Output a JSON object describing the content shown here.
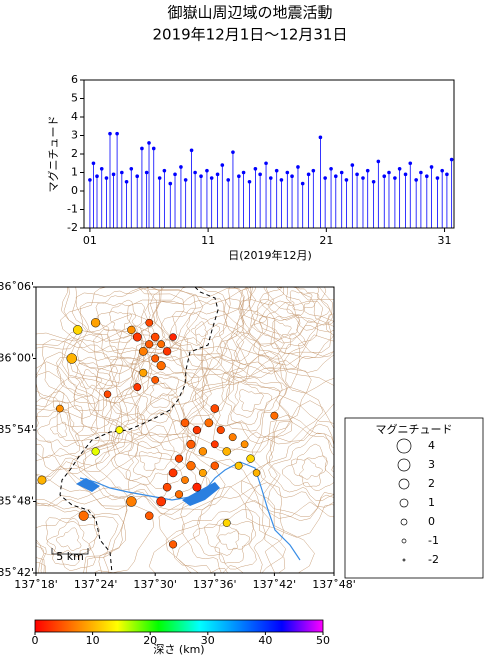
{
  "chart_data": [
    {
      "type": "stem",
      "title": "御嶽山周辺域の地震活動",
      "subtitle": "2019年12月1日～12月31日",
      "ylabel": "マグニチュード",
      "xlabel": "日(2019年12月)",
      "color": "#0000ff",
      "xlim": [
        0.5,
        31.8
      ],
      "ylim": [
        -2,
        6
      ],
      "yticks": [
        -2,
        -1,
        0,
        1,
        2,
        3,
        4,
        5,
        6
      ],
      "xticks": [
        {
          "value": 1,
          "label": "01"
        },
        11,
        21,
        31
      ],
      "x": [
        1.0,
        1.3,
        1.6,
        2.0,
        2.4,
        2.7,
        3.0,
        3.3,
        3.7,
        4.1,
        4.5,
        5.0,
        5.4,
        5.8,
        6.0,
        6.4,
        6.9,
        7.3,
        7.8,
        8.2,
        8.7,
        9.1,
        9.6,
        9.9,
        10.4,
        10.9,
        11.3,
        11.8,
        12.2,
        12.7,
        13.1,
        13.6,
        14.0,
        14.5,
        15.0,
        15.4,
        15.9,
        16.3,
        16.8,
        17.2,
        17.7,
        18.1,
        18.6,
        19.0,
        19.5,
        19.9,
        20.5,
        20.9,
        21.4,
        21.8,
        22.3,
        22.7,
        23.2,
        23.6,
        24.1,
        24.5,
        25.0,
        25.4,
        25.9,
        26.3,
        26.8,
        27.2,
        27.7,
        28.1,
        28.6,
        29.0,
        29.5,
        29.9,
        30.4,
        30.8,
        31.2,
        31.6
      ],
      "values": [
        0.6,
        1.5,
        0.8,
        1.2,
        0.7,
        3.1,
        0.9,
        3.1,
        1.0,
        0.5,
        1.2,
        0.8,
        2.3,
        1.0,
        2.6,
        2.3,
        0.7,
        1.1,
        0.4,
        0.9,
        1.3,
        0.6,
        2.2,
        1.0,
        0.8,
        1.1,
        0.7,
        0.9,
        1.4,
        0.6,
        2.1,
        0.8,
        1.0,
        0.5,
        1.2,
        0.9,
        1.5,
        0.7,
        1.1,
        0.6,
        1.0,
        0.8,
        1.3,
        0.4,
        0.9,
        1.1,
        2.9,
        0.7,
        1.2,
        0.8,
        1.0,
        0.6,
        1.4,
        0.9,
        0.7,
        1.1,
        0.5,
        1.6,
        0.8,
        1.0,
        0.7,
        1.2,
        0.9,
        1.5,
        0.6,
        1.0,
        0.8,
        1.3,
        0.7,
        1.1,
        0.9,
        1.7
      ]
    },
    {
      "type": "map-scatter",
      "xlim": [
        137.3,
        137.8
      ],
      "ylim": [
        35.7,
        36.1
      ],
      "xticks": [
        {
          "value": 137.3,
          "label": "137˚18'"
        },
        {
          "value": 137.4,
          "label": "137˚24'"
        },
        {
          "value": 137.5,
          "label": "137˚30'"
        },
        {
          "value": 137.6,
          "label": "137˚36'"
        },
        {
          "value": 137.7,
          "label": "137˚42'"
        },
        {
          "value": 137.8,
          "label": "137˚48'"
        }
      ],
      "yticks": [
        {
          "value": 35.7,
          "label": "35˚42'"
        },
        {
          "value": 35.8,
          "label": "35˚48'"
        },
        {
          "value": 35.9,
          "label": "35˚54'"
        },
        {
          "value": 36.0,
          "label": "36˚00'"
        },
        {
          "value": 36.1,
          "label": "36˚06'"
        }
      ],
      "scale_label": "5 km",
      "x": [
        137.47,
        137.49,
        137.5,
        137.51,
        137.52,
        137.48,
        137.5,
        137.53,
        137.46,
        137.49,
        137.51,
        137.48,
        137.5,
        137.47,
        137.37,
        137.36,
        137.4,
        137.42,
        137.55,
        137.57,
        137.59,
        137.61,
        137.63,
        137.56,
        137.58,
        137.6,
        137.62,
        137.54,
        137.56,
        137.58,
        137.6,
        137.53,
        137.55,
        137.52,
        137.54,
        137.57,
        137.64,
        137.66,
        137.65,
        137.67,
        137.51,
        137.49,
        137.46,
        137.38,
        137.31,
        137.34,
        137.4,
        137.7,
        137.62,
        137.53,
        137.44,
        137.6
      ],
      "values": [
        36.03,
        36.02,
        36.03,
        36.02,
        36.01,
        36.01,
        36.0,
        36.03,
        36.04,
        36.05,
        35.99,
        35.98,
        35.97,
        35.96,
        36.04,
        36.0,
        36.05,
        35.95,
        35.91,
        35.9,
        35.91,
        35.9,
        35.89,
        35.88,
        35.87,
        35.88,
        35.87,
        35.86,
        35.85,
        35.84,
        35.85,
        35.84,
        35.83,
        35.82,
        35.81,
        35.82,
        35.85,
        35.86,
        35.88,
        35.84,
        35.8,
        35.78,
        35.8,
        35.78,
        35.83,
        35.93,
        35.87,
        35.92,
        35.77,
        35.74,
        35.9,
        35.93
      ],
      "sizes": [
        1.2,
        0.8,
        1.0,
        0.6,
        0.9,
        1.1,
        0.7,
        0.5,
        0.9,
        0.6,
        1.3,
        0.8,
        0.6,
        0.7,
        1.5,
        2.0,
        1.4,
        0.5,
        1.0,
        0.9,
        1.1,
        0.8,
        0.7,
        1.2,
        0.9,
        0.6,
        1.0,
        0.8,
        1.4,
        0.7,
        0.9,
        1.1,
        0.6,
        1.0,
        0.8,
        1.2,
        0.7,
        0.9,
        0.6,
        0.5,
        1.6,
        1.0,
        2.0,
        1.8,
        1.2,
        0.6,
        0.8,
        0.7,
        0.7,
        0.8,
        0.6,
        1.0
      ],
      "depths": [
        3,
        5,
        4,
        6,
        3,
        7,
        5,
        2,
        8,
        4,
        6,
        9,
        5,
        3,
        12,
        10,
        9,
        4,
        5,
        3,
        6,
        4,
        7,
        5,
        8,
        3,
        10,
        4,
        6,
        9,
        5,
        3,
        7,
        4,
        6,
        2,
        11,
        12,
        8,
        10,
        3,
        5,
        7,
        6,
        10,
        8,
        15,
        6,
        12,
        5,
        14,
        4
      ],
      "legend": {
        "title": "マグニチュード",
        "sizes": [
          4,
          3,
          2,
          1,
          0,
          -1,
          -2
        ]
      }
    },
    {
      "type": "colorbar",
      "label": "深さ (km)",
      "xlim": [
        0,
        50
      ],
      "xticks": [
        0,
        10,
        20,
        30,
        40,
        50
      ],
      "colors": [
        "#ff0000",
        "#ff8000",
        "#ffff00",
        "#00ff00",
        "#00ffff",
        "#0080ff",
        "#0000ff",
        "#ff00ff"
      ]
    }
  ]
}
